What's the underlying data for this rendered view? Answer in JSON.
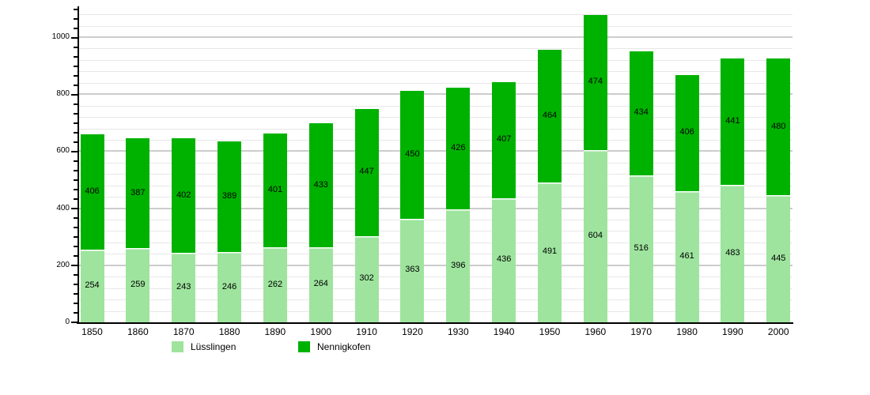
{
  "chart_data": {
    "type": "bar",
    "stacked": true,
    "title": "",
    "xlabel": "",
    "ylabel": "",
    "categories": [
      "1850",
      "1860",
      "1870",
      "1880",
      "1890",
      "1900",
      "1910",
      "1920",
      "1930",
      "1940",
      "1950",
      "1960",
      "1970",
      "1980",
      "1990",
      "2000"
    ],
    "series": [
      {
        "name": "Lüsslingen",
        "color": "#9ee49e",
        "values": [
          254,
          259,
          243,
          246,
          262,
          264,
          302,
          363,
          396,
          436,
          491,
          604,
          516,
          461,
          483,
          445
        ]
      },
      {
        "name": "Nennigkofen",
        "color": "#00b200",
        "values": [
          406,
          387,
          402,
          389,
          401,
          433,
          447,
          450,
          426,
          407,
          464,
          474,
          434,
          406,
          441,
          480
        ]
      }
    ],
    "y_ticks": [
      0,
      200,
      400,
      600,
      800,
      1000
    ],
    "ylim": [
      0,
      1100
    ],
    "grid": {
      "orientation": "horizontal",
      "major_step": 200,
      "minor_step": 40
    },
    "legend_position": "bottom",
    "bar_value_labels": true
  }
}
